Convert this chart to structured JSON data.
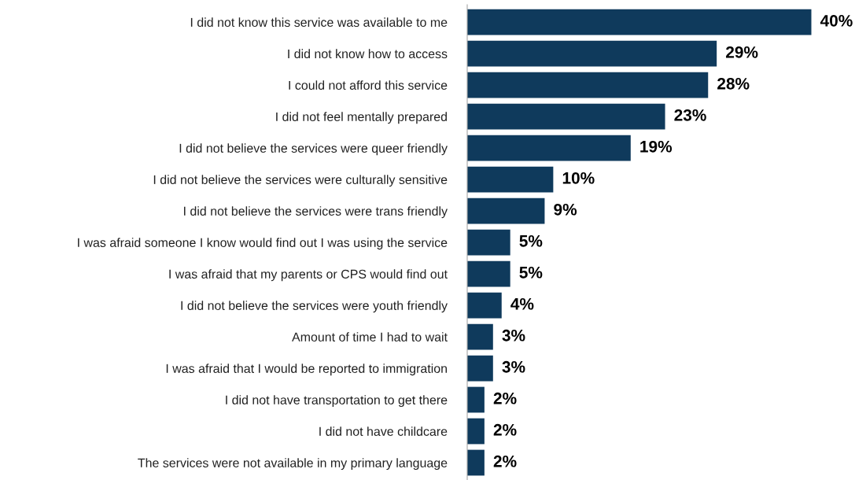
{
  "chart_data": {
    "type": "bar",
    "orientation": "horizontal",
    "categories": [
      "I did not know this service was available to me",
      "I did not know how to access",
      "I could not afford this service",
      "I did not feel mentally prepared",
      "I did not believe the services were queer friendly",
      "I did not believe the services were culturally sensitive",
      "I did not believe the services were trans friendly",
      "I was afraid someone I know would find out I was using the service",
      "I was afraid that my parents or CPS would find out",
      "I did not believe the services were youth friendly",
      "Amount of time I had to wait",
      "I was afraid that I would be reported to immigration",
      "I did not have transportation to get there",
      "I did not have childcare",
      "The services were not available in my primary language"
    ],
    "values": [
      40,
      29,
      28,
      23,
      19,
      10,
      9,
      5,
      5,
      4,
      3,
      3,
      2,
      2,
      2
    ],
    "value_labels": [
      "40%",
      "29%",
      "28%",
      "23%",
      "19%",
      "10%",
      "9%",
      "5%",
      "5%",
      "4%",
      "3%",
      "3%",
      "2%",
      "2%",
      "2%"
    ],
    "color": "#0f3a5c",
    "grid": false,
    "legend": false
  }
}
